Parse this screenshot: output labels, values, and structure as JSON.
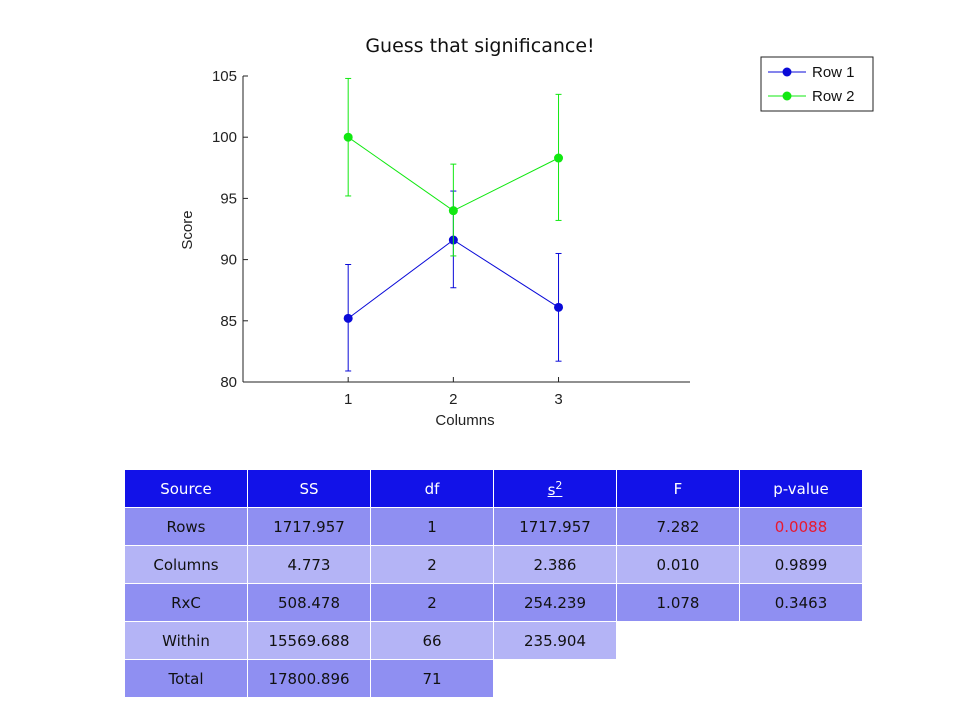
{
  "chart_data": {
    "type": "line",
    "title": "Guess that significance!",
    "xlabel": "Columns",
    "ylabel": "Score",
    "x": [
      1,
      2,
      3
    ],
    "xlim": [
      0.0,
      4.25
    ],
    "ylim": [
      80,
      105
    ],
    "xticks": [
      "1",
      "2",
      "3"
    ],
    "yticks": [
      "80",
      "85",
      "90",
      "95",
      "100",
      "105"
    ],
    "grid": false,
    "legend_position": "top-right",
    "error_bars": true,
    "series": [
      {
        "name": "Row 1",
        "color": "#0a0ad8",
        "values": [
          85.2,
          91.6,
          86.1
        ],
        "err_low": [
          80.9,
          87.7,
          81.7
        ],
        "err_high": [
          89.6,
          95.6,
          90.5
        ]
      },
      {
        "name": "Row 2",
        "color": "#11e811",
        "values": [
          100.0,
          94.0,
          98.3
        ],
        "err_low": [
          95.2,
          90.3,
          93.2
        ],
        "err_high": [
          104.8,
          97.8,
          103.5
        ]
      }
    ]
  },
  "table": {
    "headers": [
      "Source",
      "SS",
      "df",
      "s",
      "F",
      "p-value"
    ],
    "s_superscript": "2",
    "rows": [
      [
        "Rows",
        "1717.957",
        "1",
        "1717.957",
        "7.282",
        "0.0088"
      ],
      [
        "Columns",
        "4.773",
        "2",
        "2.386",
        "0.010",
        "0.9899"
      ],
      [
        "RxC",
        "508.478",
        "2",
        "254.239",
        "1.078",
        "0.3463"
      ],
      [
        "Within",
        "15569.688",
        "66",
        "235.904",
        "",
        ""
      ],
      [
        "Total",
        "17800.896",
        "71",
        "",
        "",
        ""
      ]
    ],
    "header_color": "#1212e8",
    "highlight_color": "#e8182f",
    "highlight_cell": "0.0088"
  }
}
